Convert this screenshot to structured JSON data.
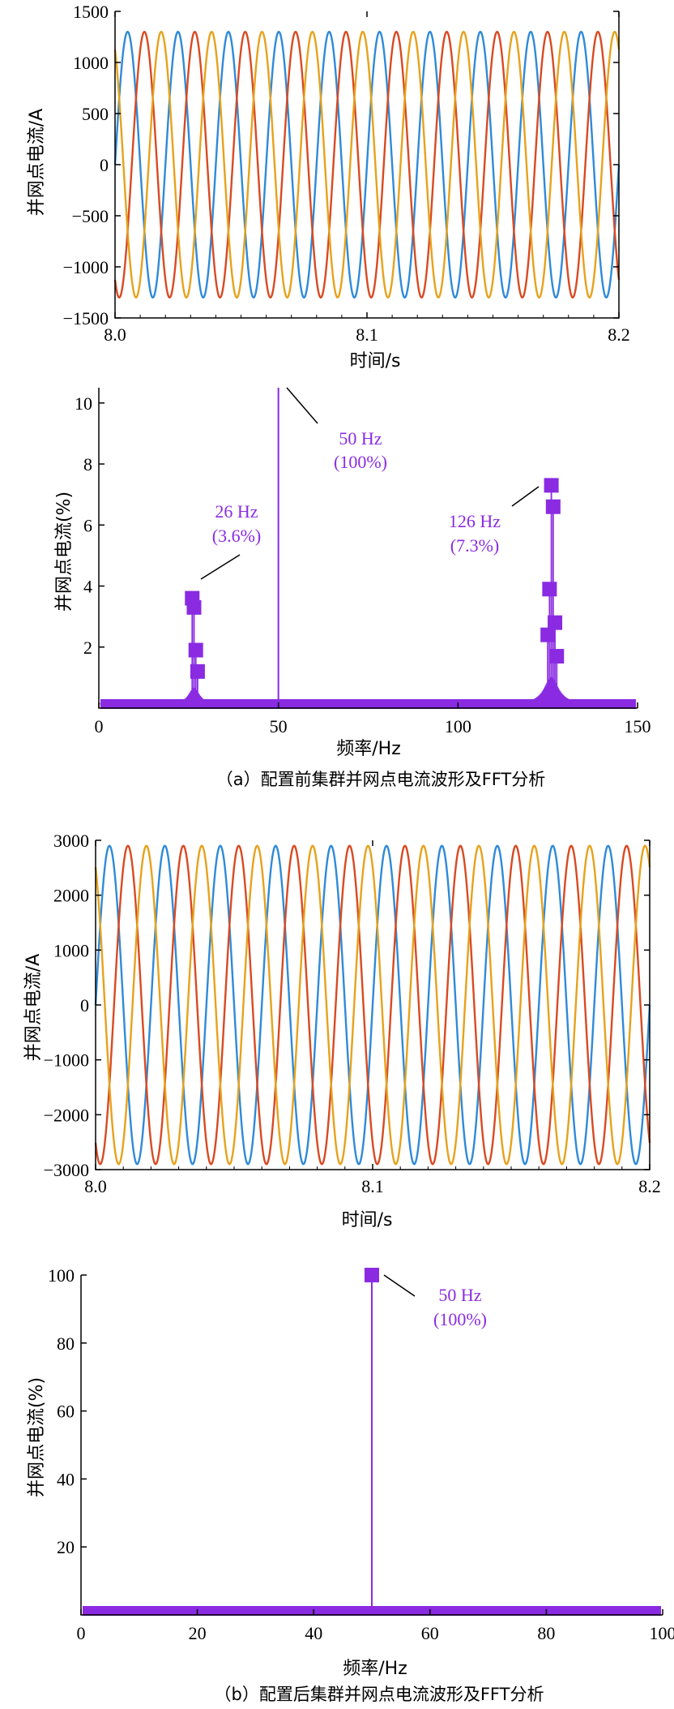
{
  "colors": {
    "phase_a": "#2f8ad8",
    "phase_b": "#d84a22",
    "phase_c": "#e6a21c",
    "spectrum": "#8a2be2"
  },
  "captions": {
    "a": "（a）配置前集群并网点电流波形及FFT分析",
    "b": "（b）配置后集群并网点电流波形及FFT分析"
  },
  "chart_data": [
    {
      "id": "wave_before",
      "type": "line",
      "xlabel": "时间/s",
      "ylabel": "并网点电流/A",
      "xlim": [
        8.0,
        8.2
      ],
      "ylim": [
        -1500,
        1500
      ],
      "xticks": [
        "8.0",
        "8.1",
        "8.2"
      ],
      "yticks": [
        "1500",
        "1000",
        "500",
        "0",
        "−500",
        "−1000",
        "−1500"
      ],
      "amplitude": 1300,
      "frequency_hz": 50,
      "phases_deg": [
        0,
        -120,
        120
      ],
      "grid": false
    },
    {
      "id": "fft_before",
      "type": "bar",
      "xlabel": "频率/Hz",
      "ylabel": "并网点电流(%)",
      "xlim": [
        0,
        150
      ],
      "ylim": [
        0,
        10.5
      ],
      "xticks": [
        "0",
        "50",
        "100",
        "150"
      ],
      "yticks": [
        "10",
        "8",
        "6",
        "4",
        "2"
      ],
      "fundamental": {
        "x": 50,
        "y": 100
      },
      "markers": [
        {
          "x": 26,
          "y": 3.6
        },
        {
          "x": 26.5,
          "y": 3.3
        },
        {
          "x": 27,
          "y": 1.9
        },
        {
          "x": 27.5,
          "y": 1.2
        },
        {
          "x": 126,
          "y": 7.3
        },
        {
          "x": 126.5,
          "y": 6.6
        },
        {
          "x": 125.5,
          "y": 3.9
        },
        {
          "x": 127,
          "y": 2.8
        },
        {
          "x": 125,
          "y": 2.4
        },
        {
          "x": 127.5,
          "y": 1.7
        }
      ],
      "annotations": [
        {
          "label": "50 Hz",
          "sub": "(100%)"
        },
        {
          "label": "26 Hz",
          "sub": "(3.6%)"
        },
        {
          "label": "126 Hz",
          "sub": "(7.3%)"
        }
      ],
      "grid": false
    },
    {
      "id": "wave_after",
      "type": "line",
      "xlabel": "时间/s",
      "ylabel": "并网点电流/A",
      "xlim": [
        8.0,
        8.2
      ],
      "ylim": [
        -3000,
        3000
      ],
      "xticks": [
        "8.0",
        "8.1",
        "8.2"
      ],
      "yticks": [
        "3000",
        "2000",
        "1000",
        "0",
        "−1000",
        "−2000",
        "−3000"
      ],
      "amplitude": 2900,
      "frequency_hz": 50,
      "phases_deg": [
        0,
        -120,
        120
      ],
      "grid": false
    },
    {
      "id": "fft_after",
      "type": "bar",
      "xlabel": "频率/Hz",
      "ylabel": "并网点电流(%)",
      "xlim": [
        0,
        100
      ],
      "ylim": [
        0,
        100
      ],
      "xticks": [
        "0",
        "20",
        "40",
        "60",
        "80",
        "100"
      ],
      "yticks": [
        "100",
        "80",
        "60",
        "40",
        "20"
      ],
      "fundamental": {
        "x": 50,
        "y": 100
      },
      "annotations": [
        {
          "label": "50 Hz",
          "sub": "(100%)"
        }
      ],
      "grid": false
    }
  ]
}
